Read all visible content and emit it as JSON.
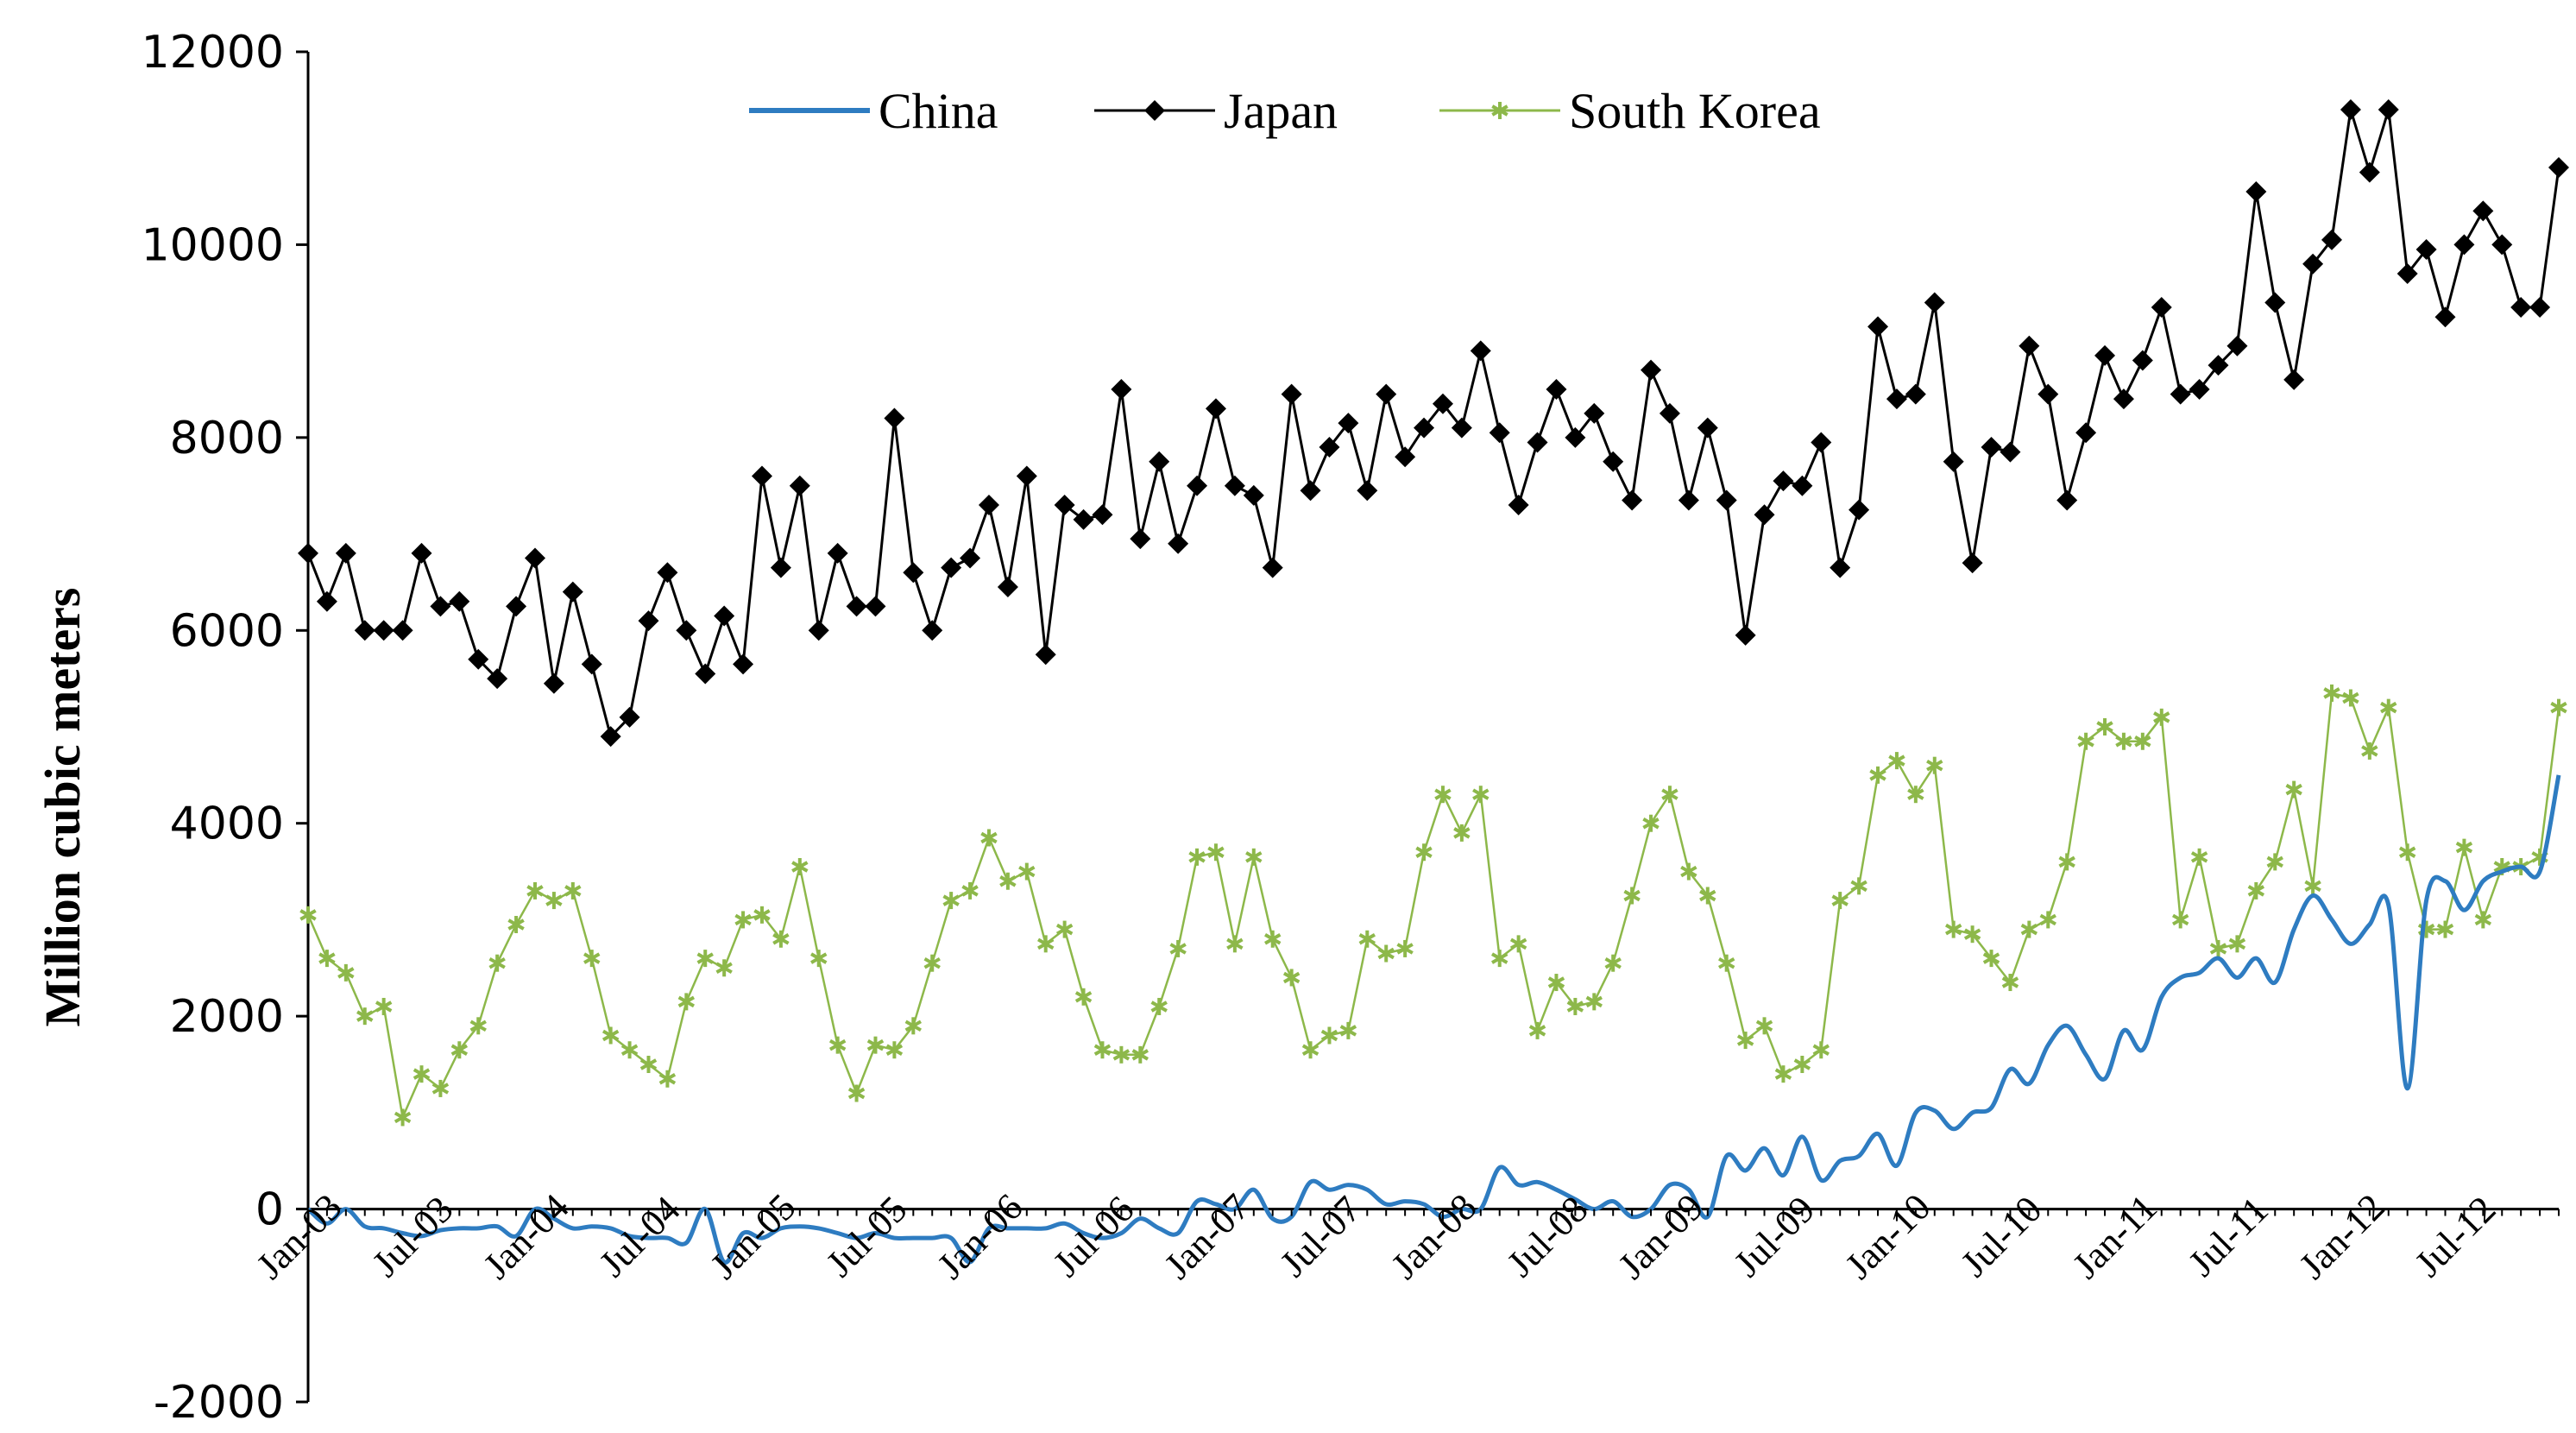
{
  "chart_data": {
    "type": "line",
    "title": "",
    "xlabel": "",
    "ylabel": "Million cubic meters",
    "ylim": [
      -2000,
      12000
    ],
    "y_ticks": [
      -2000,
      0,
      2000,
      4000,
      6000,
      8000,
      10000,
      12000
    ],
    "y_tick_labels": [
      "-2000",
      "0",
      "2000",
      "4000",
      "6000",
      "8000",
      "10000",
      "12000"
    ],
    "x_tick_labels": [
      "Jan-03",
      "Jul-03",
      "Jan-04",
      "Jul-04",
      "Jan-05",
      "Jul-05",
      "Jan-06",
      "Jul-06",
      "Jan-07",
      "Jul-07",
      "Jan-08",
      "Jul-08",
      "Jan-09",
      "Jul-09",
      "Jan-10",
      "Jul-10",
      "Jan-11",
      "Jul-11",
      "Jan-12",
      "Jul-12"
    ],
    "x_tick_index": [
      0,
      6,
      12,
      18,
      24,
      30,
      36,
      42,
      48,
      54,
      60,
      66,
      72,
      78,
      84,
      90,
      96,
      102,
      108,
      114
    ],
    "months": 120,
    "legend_position": "top-center",
    "series": [
      {
        "name": "China",
        "color": "#2E7CC1",
        "marker": "none",
        "smooth": true,
        "values": [
          0,
          -150,
          0,
          -180,
          -200,
          -250,
          -280,
          -220,
          -200,
          -200,
          -180,
          -280,
          0,
          -100,
          -200,
          -180,
          -200,
          -280,
          -300,
          -300,
          -350,
          0,
          -550,
          -250,
          -300,
          -200,
          -180,
          -200,
          -250,
          -300,
          -250,
          -300,
          -300,
          -300,
          -300,
          -550,
          -200,
          -200,
          -200,
          -200,
          -150,
          -250,
          -300,
          -250,
          -100,
          -200,
          -250,
          80,
          50,
          0,
          200,
          -100,
          -80,
          280,
          200,
          250,
          200,
          50,
          80,
          50,
          -80,
          0,
          0,
          430,
          250,
          280,
          200,
          100,
          0,
          80,
          -80,
          0,
          250,
          200,
          -80,
          550,
          400,
          630,
          350,
          750,
          300,
          500,
          550,
          780,
          450,
          1000,
          1020,
          830,
          1000,
          1050,
          1450,
          1300,
          1700,
          1900,
          1600,
          1350,
          1850,
          1650,
          2200,
          2400,
          2450,
          2600,
          2400,
          2600,
          2350,
          2900,
          3250,
          3000,
          2750,
          2950,
          3150,
          1250,
          3200,
          3400,
          3100,
          3400,
          3500,
          3550,
          3500,
          4500
        ]
      },
      {
        "name": "Japan",
        "color": "#000000",
        "marker": "diamond",
        "smooth": false,
        "values": [
          6800,
          6300,
          6800,
          6000,
          6000,
          6000,
          6800,
          6250,
          6300,
          5700,
          5500,
          6250,
          6750,
          5450,
          6400,
          5650,
          4900,
          5100,
          6100,
          6600,
          6000,
          5550,
          6150,
          5650,
          7600,
          6650,
          7500,
          6000,
          6800,
          6250,
          6250,
          8200,
          6600,
          6000,
          6650,
          6750,
          7300,
          6450,
          7600,
          5750,
          7300,
          7150,
          7200,
          8500,
          6950,
          7750,
          6900,
          7500,
          8300,
          7500,
          7400,
          6650,
          8450,
          7450,
          7900,
          8150,
          7450,
          8450,
          7800,
          8100,
          8350,
          8100,
          8900,
          8050,
          7300,
          7950,
          8500,
          8000,
          8250,
          7750,
          7350,
          8700,
          8250,
          7350,
          8100,
          7350,
          5950,
          7200,
          7550,
          7500,
          7950,
          6650,
          7250,
          9150,
          8400,
          8450,
          9400,
          7750,
          6700,
          7900,
          7850,
          8950,
          8450,
          7350,
          8050,
          8850,
          8400,
          8800,
          9350,
          8450,
          8500,
          8750,
          8950,
          10550,
          9400,
          8600,
          9800,
          10050,
          11400,
          10750,
          11400,
          9700,
          9950,
          9250,
          10000,
          10350,
          10000,
          9350,
          9350,
          10800
        ]
      },
      {
        "name": "South Korea",
        "color": "#8DB84A",
        "marker": "asterisk",
        "smooth": false,
        "values": [
          3050,
          2600,
          2450,
          2000,
          2100,
          950,
          1400,
          1250,
          1650,
          1900,
          2550,
          2950,
          3300,
          3200,
          3300,
          2600,
          1800,
          1650,
          1500,
          1350,
          2150,
          2600,
          2500,
          3000,
          3050,
          2800,
          3550,
          2600,
          1700,
          1200,
          1700,
          1650,
          1900,
          2550,
          3200,
          3300,
          3850,
          3400,
          3500,
          2750,
          2900,
          2200,
          1650,
          1600,
          1600,
          2100,
          2700,
          3650,
          3700,
          2750,
          3650,
          2800,
          2400,
          1650,
          1800,
          1850,
          2800,
          2650,
          2700,
          3700,
          4300,
          3900,
          4300,
          2600,
          2750,
          1850,
          2350,
          2100,
          2150,
          2550,
          3250,
          4000,
          4300,
          3500,
          3250,
          2550,
          1750,
          1900,
          1400,
          1500,
          1650,
          3200,
          3350,
          4500,
          4650,
          4300,
          4600,
          2900,
          2850,
          2600,
          2350,
          2900,
          3000,
          3600,
          4850,
          5000,
          4850,
          4850,
          5100,
          3000,
          3650,
          2700,
          2750,
          3300,
          3600,
          4350,
          3350,
          5350,
          5300,
          4750,
          5200,
          3700,
          2900,
          2900,
          3750,
          3000,
          3550,
          3550,
          3650,
          5200
        ]
      }
    ]
  }
}
